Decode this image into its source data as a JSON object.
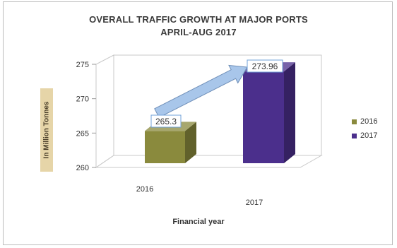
{
  "chart_data": {
    "type": "bar",
    "title_line1": "OVERALL TRAFFIC GROWTH AT MAJOR PORTS",
    "title_line2": "APRIL-AUG 2017",
    "xlabel": "Financial year",
    "ylabel": "In Million Tonnes",
    "categories": [
      "2016",
      "2017"
    ],
    "values": [
      265.3,
      273.96
    ],
    "data_labels": [
      "265.3",
      "273.96"
    ],
    "yticks": [
      "260",
      "265",
      "270",
      "275"
    ],
    "ylim": [
      260,
      275
    ],
    "legend": [
      {
        "name": "2016",
        "color": "#8a8a3d"
      },
      {
        "name": "2017",
        "color": "#4b2f8c"
      }
    ],
    "legend_position": "right",
    "grid": false,
    "annotation": "growth arrow from 2016 bar to 2017 bar",
    "colors": {
      "bar_2016": "#8a8a3d",
      "bar_2017": "#4b2f8c",
      "arrow": "#a8c6ea"
    }
  }
}
